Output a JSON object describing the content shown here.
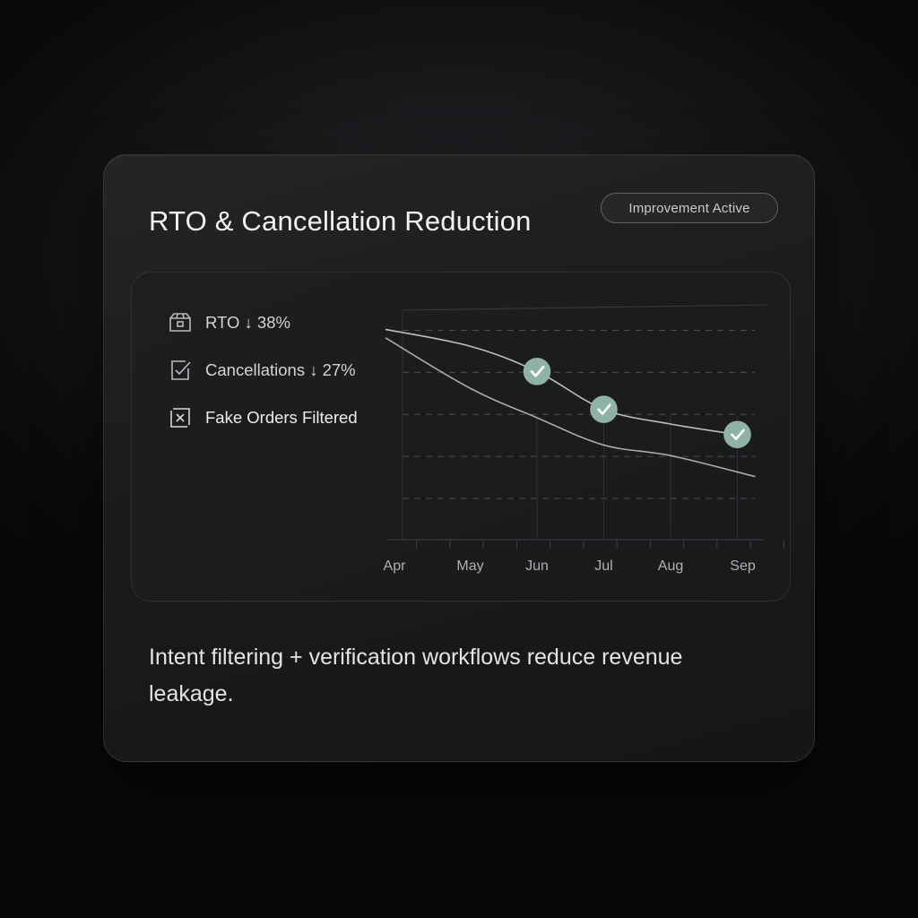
{
  "card": {
    "title": "RTO & Cancellation Reduction",
    "badge": "Improvement Active",
    "description": "Intent filtering + verification workflows reduce revenue leakage."
  },
  "metrics": [
    {
      "label": "RTO ↓ 38%",
      "icon": "box-icon"
    },
    {
      "label": "Cancellations ↓ 27%",
      "icon": "checkbox-icon"
    },
    {
      "label": "Fake Orders Filtered",
      "icon": "x-box-icon"
    }
  ],
  "colors": {
    "accent": "#8fb2a6",
    "line": "#d9dadc",
    "background": "#0b0c0e"
  },
  "chart_data": {
    "type": "line",
    "categories": [
      "Apr",
      "May",
      "Jun",
      "Jul",
      "Aug",
      "Sep"
    ],
    "series": [
      {
        "values": [
          100,
          92,
          80,
          62,
          55,
          50
        ],
        "markers": [
          "Jun",
          "Jul",
          "Sep"
        ]
      },
      {
        "values": [
          96,
          72,
          58,
          45,
          40,
          30
        ]
      }
    ],
    "grid": "horizontal-dashed",
    "title": "",
    "xlabel": "",
    "ylabel": "",
    "ylim": [
      0,
      110
    ]
  }
}
